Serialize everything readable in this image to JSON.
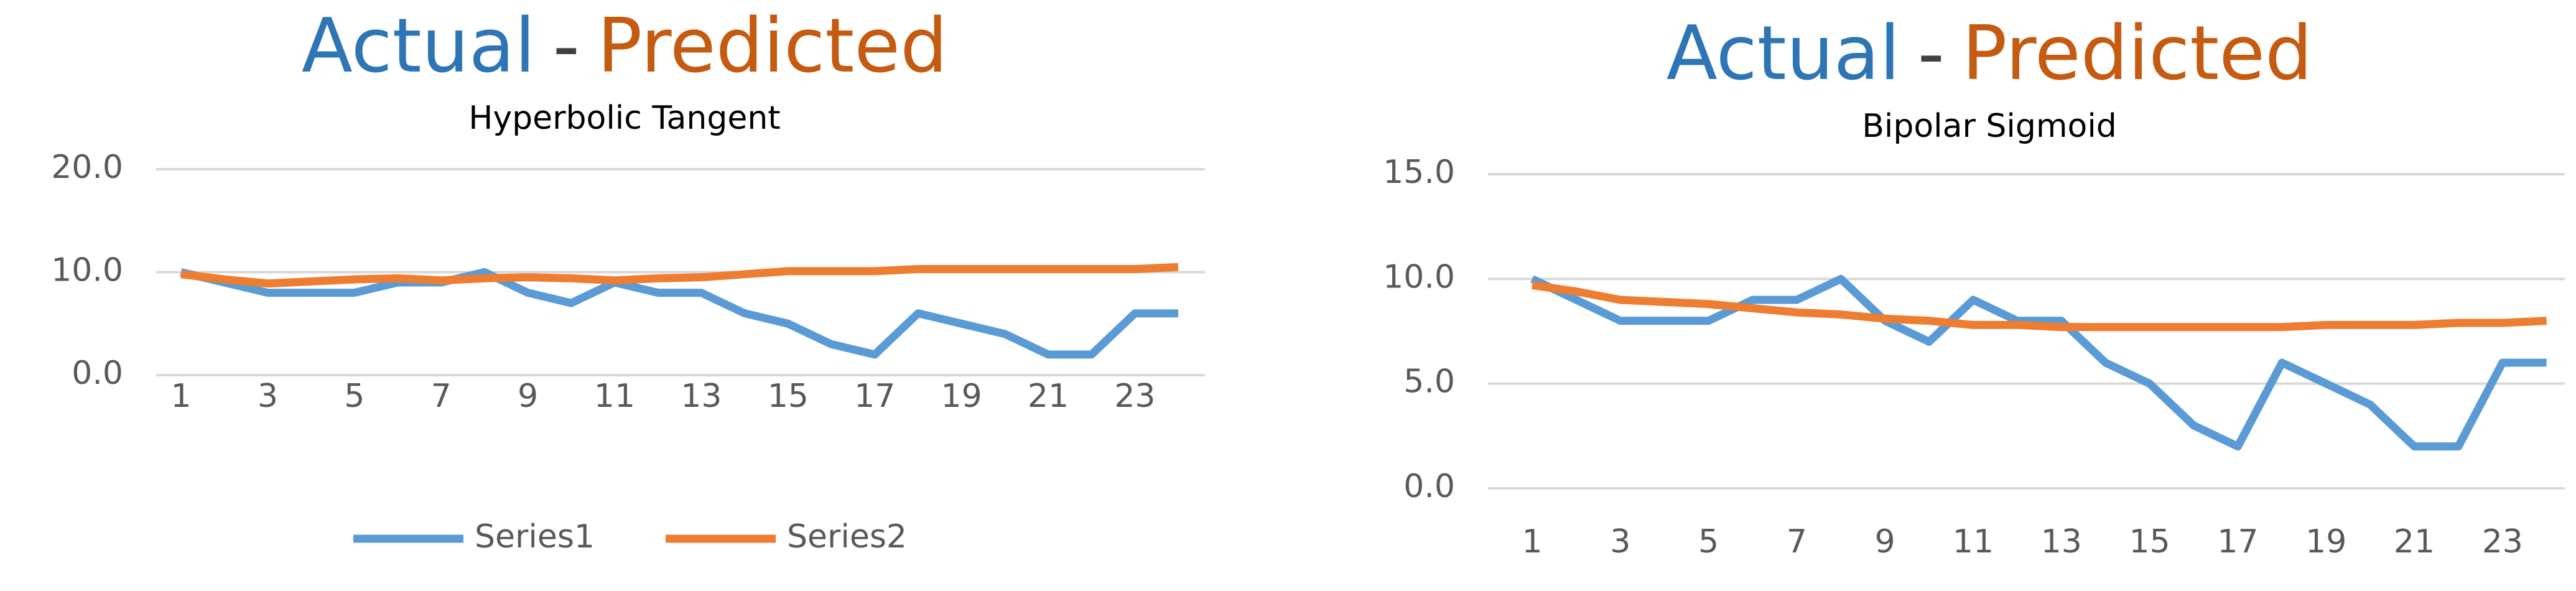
{
  "chart_data": [
    {
      "type": "line",
      "title": [
        "Actual",
        "-",
        "Predicted"
      ],
      "title_colors": [
        "#2e75b6",
        "#404040",
        "#c55a11"
      ],
      "subtitle": "Hyperbolic Tangent",
      "categories": [
        "1",
        null,
        "3",
        null,
        "5",
        null,
        "7",
        null,
        "9",
        null,
        "11",
        null,
        "13",
        null,
        "15",
        null,
        "17",
        null,
        "19",
        null,
        "21",
        null,
        "23",
        null
      ],
      "series": [
        {
          "name": "Series1",
          "color": "#5b9bd5",
          "values": [
            10,
            9,
            8,
            8,
            8,
            9,
            9,
            10,
            8,
            7,
            9,
            8,
            8,
            6,
            5,
            3,
            2,
            6,
            5,
            4,
            2,
            2,
            6,
            6
          ]
        },
        {
          "name": "Series2",
          "color": "#ed7d31",
          "values": [
            9.8,
            9.3,
            8.9,
            9.1,
            9.3,
            9.4,
            9.2,
            9.4,
            9.5,
            9.4,
            9.2,
            9.4,
            9.5,
            9.8,
            10.1,
            10.1,
            10.1,
            10.3,
            10.3,
            10.3,
            10.3,
            10.3,
            10.3,
            10.5
          ]
        }
      ],
      "ylim": [
        0,
        20
      ],
      "yticks": [
        {
          "value": 0,
          "label": "0.0"
        },
        {
          "value": 10,
          "label": "10.0"
        },
        {
          "value": 20,
          "label": "20.0"
        }
      ],
      "grid": true,
      "legend": "bottom"
    },
    {
      "type": "line",
      "title": [
        "Actual",
        "-",
        "Predicted"
      ],
      "title_colors": [
        "#2e75b6",
        "#404040",
        "#c55a11"
      ],
      "subtitle": "Bipolar Sigmoid",
      "categories": [
        "1",
        null,
        "3",
        null,
        "5",
        null,
        "7",
        null,
        "9",
        null,
        "11",
        null,
        "13",
        null,
        "15",
        null,
        "17",
        null,
        "19",
        null,
        "21",
        null,
        "23",
        null
      ],
      "series": [
        {
          "name": "Series1",
          "color": "#5b9bd5",
          "values": [
            10,
            9,
            8,
            8,
            8,
            9,
            9,
            10,
            8,
            7,
            9,
            8,
            8,
            6,
            5,
            3,
            2,
            6,
            5,
            4,
            2,
            2,
            6,
            6
          ]
        },
        {
          "name": "Series2",
          "color": "#ed7d31",
          "values": [
            9.7,
            9.4,
            9.0,
            8.9,
            8.8,
            8.6,
            8.4,
            8.3,
            8.1,
            8.0,
            7.8,
            7.8,
            7.7,
            7.7,
            7.7,
            7.7,
            7.7,
            7.7,
            7.8,
            7.8,
            7.8,
            7.9,
            7.9,
            8.0
          ]
        }
      ],
      "ylim": [
        0,
        15
      ],
      "yticks": [
        {
          "value": 0,
          "label": "0.0"
        },
        {
          "value": 5,
          "label": "5.0"
        },
        {
          "value": 10,
          "label": "10.0"
        },
        {
          "value": 15,
          "label": "15.0"
        }
      ],
      "grid": true,
      "legend": "none"
    }
  ]
}
